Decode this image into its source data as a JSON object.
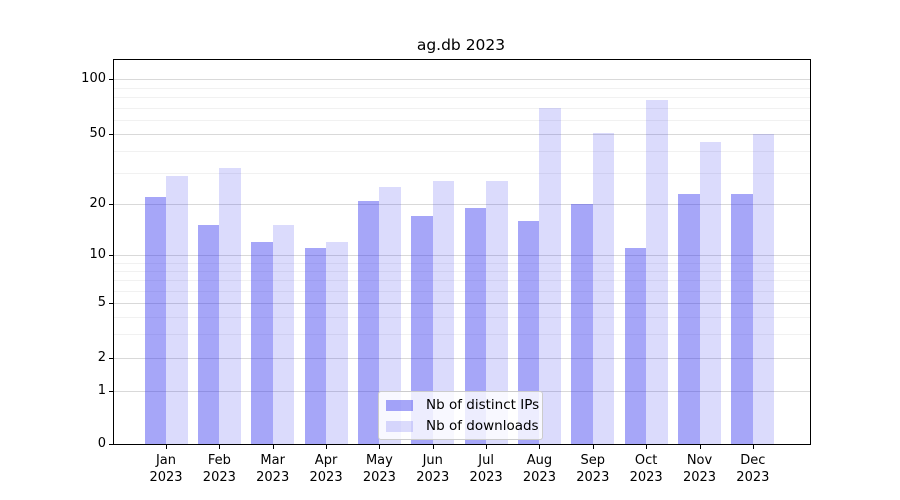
{
  "title": "ag.db 2023",
  "chart_data": {
    "type": "bar",
    "title": "ag.db 2023",
    "categories": [
      "Jan 2023",
      "Feb 2023",
      "Mar 2023",
      "Apr 2023",
      "May 2023",
      "Jun 2023",
      "Jul 2023",
      "Aug 2023",
      "Sep 2023",
      "Oct 2023",
      "Nov 2023",
      "Dec 2023"
    ],
    "x_tick_months": [
      "Jan",
      "Feb",
      "Mar",
      "Apr",
      "May",
      "Jun",
      "Jul",
      "Aug",
      "Sep",
      "Oct",
      "Nov",
      "Dec"
    ],
    "x_tick_year": "2023",
    "series": [
      {
        "name": "Nb of distinct IPs",
        "color": "rgba(42,42,238,0.42)",
        "values": [
          22,
          15,
          12,
          11,
          21,
          17,
          19,
          16,
          20,
          11,
          23,
          23
        ]
      },
      {
        "name": "Nb of downloads",
        "color": "rgba(42,42,238,0.17)",
        "values": [
          29,
          32,
          15,
          12,
          25,
          27,
          27,
          70,
          51,
          77,
          45,
          50
        ]
      }
    ],
    "xlabel": "",
    "ylabel": "",
    "yscale": "symlog",
    "ylim": [
      0,
      110
    ],
    "y_tick_values": [
      100,
      50,
      20,
      10,
      5,
      2,
      1,
      0
    ],
    "y_tick_labels": [
      "100",
      "50",
      "20",
      "10",
      "5",
      "2",
      "1",
      "0"
    ],
    "minor_gridline_values": [
      3,
      4,
      6,
      7,
      8,
      9,
      30,
      40,
      60,
      70,
      80,
      90
    ],
    "grid": true,
    "legend_position": "lower center",
    "colors": {
      "grid_major": "#d9d9d9",
      "grid_minor": "#f1f1f1",
      "axis": "#000000",
      "background": "#ffffff"
    },
    "scale_anchors": [
      [
        0,
        0
      ],
      [
        1,
        0.138
      ],
      [
        2,
        0.2247
      ],
      [
        5,
        0.3664
      ],
      [
        10,
        0.4914
      ],
      [
        20,
        0.6242
      ],
      [
        50,
        0.8065
      ],
      [
        100,
        0.9497
      ]
    ]
  }
}
